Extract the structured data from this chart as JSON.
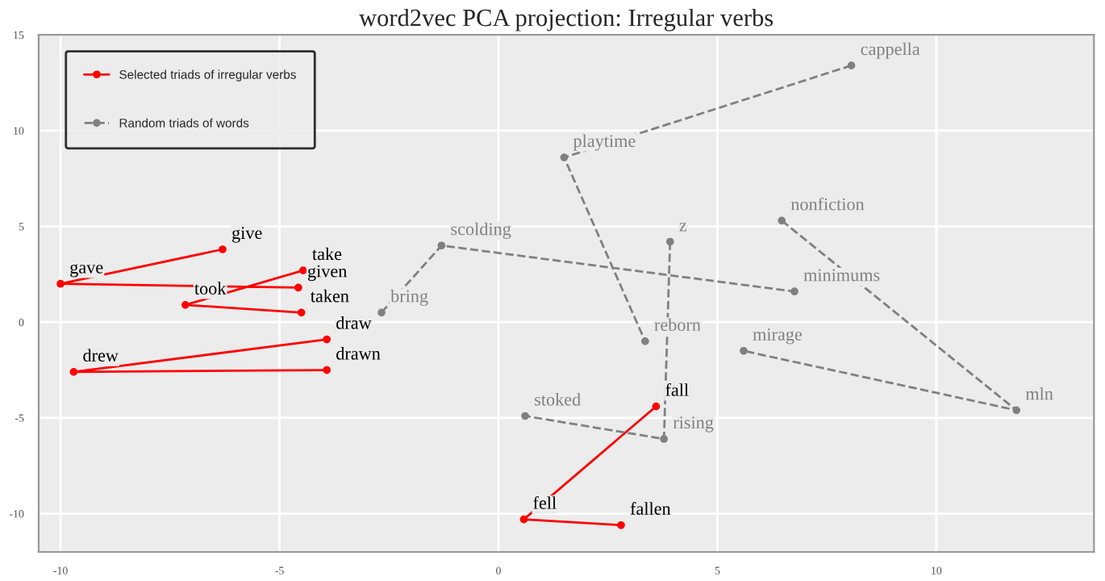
{
  "chart_data": {
    "type": "line",
    "title": "word2vec PCA projection: Irregular verbs",
    "xlim": [
      -10.5,
      13.6
    ],
    "ylim": [
      -12,
      15
    ],
    "xticks": [
      -10,
      -5,
      0,
      5,
      10
    ],
    "yticks": [
      -10,
      -5,
      0,
      5,
      10,
      15
    ],
    "grid": true,
    "legend": "top left",
    "marker": "circle",
    "series": [
      {
        "name": "Selected triads of irregular verbs",
        "color": "#ff0000",
        "line_style": "solid",
        "x": [
          -6.3,
          -10,
          -4.57,
          null,
          -4.46,
          -7.15,
          -4.5,
          null,
          -3.92,
          -9.7,
          -3.92,
          null,
          3.6,
          0.58,
          2.8
        ],
        "values": [
          3.8,
          2.0,
          1.8,
          null,
          2.7,
          0.9,
          0.5,
          null,
          -0.9,
          -2.6,
          -2.5,
          null,
          -4.4,
          -10.3,
          -10.6
        ],
        "value_labels": [
          "give",
          "gave",
          "given",
          null,
          "take",
          "took",
          "taken",
          null,
          "draw",
          "drew",
          "drawn",
          null,
          "fall",
          "fell",
          "fallen"
        ]
      },
      {
        "name": "Random triads of words",
        "color": "#808080",
        "line_style": "dashed",
        "x": [
          8.06,
          1.5,
          3.35,
          null,
          -2.67,
          -1.3,
          6.76,
          null,
          3.92,
          3.78,
          0.61,
          null,
          6.47,
          11.83,
          5.6
        ],
        "values": [
          13.4,
          8.6,
          -1.0,
          null,
          0.5,
          4.0,
          1.6,
          null,
          4.2,
          -6.1,
          -4.9,
          null,
          5.3,
          -4.6,
          -1.5
        ],
        "value_labels": [
          "cappella",
          "playtime",
          "reborn",
          null,
          "bring",
          "scolding",
          "minimums",
          null,
          "z",
          "rising",
          "stoked",
          null,
          "nonfiction",
          "mln",
          "mirage"
        ]
      }
    ]
  }
}
